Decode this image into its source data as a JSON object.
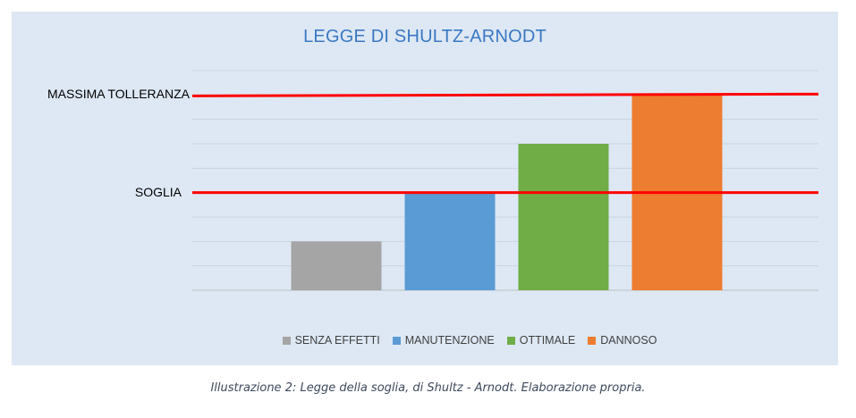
{
  "chart_data": {
    "type": "bar",
    "title": "LEGGE DI SHULTZ-ARNODT",
    "categories": [
      "SENZA EFFETTI",
      "MANUTENZIONE",
      "OTTIMALE",
      "DANNOSO"
    ],
    "values": [
      2,
      4,
      6,
      8
    ],
    "colors": [
      "#a5a5a5",
      "#5b9bd5",
      "#70ad47",
      "#ed7d31"
    ],
    "ylim": [
      0,
      9
    ],
    "grid": true,
    "legend": "bottom",
    "reference_lines": [
      {
        "label": "MASSIMA TOLLERANZA",
        "value": 8,
        "color": "#ff0000"
      },
      {
        "label": "SOGLIA",
        "value": 4,
        "color": "#ff0000"
      }
    ]
  },
  "caption": "Illustrazione 2: Legge della soglia, di Shultz - Arnodt. Elaborazione propria."
}
